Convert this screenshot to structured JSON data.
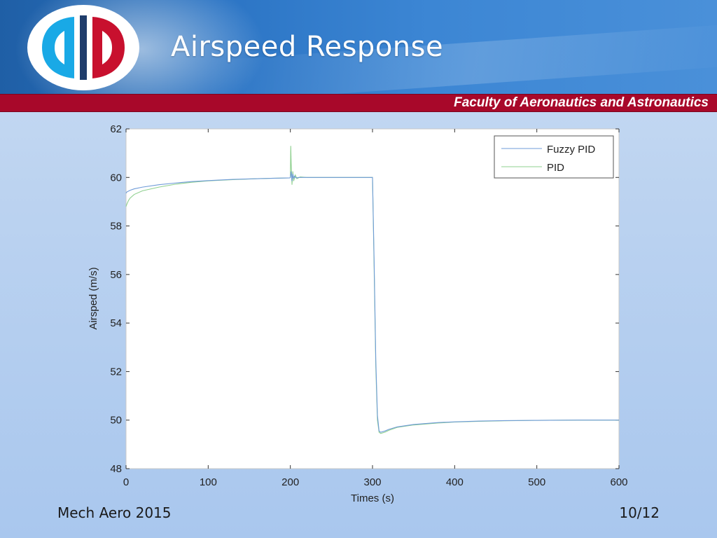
{
  "slide": {
    "title": "Airspeed Response",
    "band_text": "Faculty of Aeronautics and Astronautics",
    "footer_left": "Mech Aero 2015",
    "page_number": "10/12",
    "colors": {
      "header_blue": "#2b74c4",
      "band_red": "#a8082a",
      "logo_cyan": "#19a9e6",
      "logo_red": "#c8102e"
    },
    "logo_icon": "university-logo-icon"
  },
  "chart_data": {
    "type": "line",
    "xlabel": "Times (s)",
    "ylabel": "Airsped (m/s)",
    "xlim": [
      0,
      600
    ],
    "ylim": [
      48,
      62
    ],
    "xticks": [
      0,
      100,
      200,
      300,
      400,
      500,
      600
    ],
    "yticks": [
      48,
      50,
      52,
      54,
      56,
      58,
      60,
      62
    ],
    "grid": false,
    "legend_position": "top-right",
    "series": [
      {
        "name": "Fuzzy PID",
        "color": "#6f9bd8",
        "x": [
          0,
          1,
          5,
          10,
          20,
          40,
          60,
          80,
          100,
          130,
          160,
          199.5,
          200,
          201,
          202,
          203,
          204,
          205,
          207,
          210,
          220,
          250,
          299,
          300,
          302,
          304,
          306,
          308,
          310,
          315,
          320,
          330,
          350,
          380,
          400,
          430,
          460,
          500,
          550,
          600
        ],
        "y": [
          59.35,
          59.4,
          59.47,
          59.53,
          59.6,
          59.7,
          59.77,
          59.83,
          59.87,
          59.92,
          59.95,
          59.98,
          60.0,
          60.25,
          59.85,
          60.15,
          59.95,
          60.05,
          59.98,
          60.0,
          60.0,
          60.0,
          60.0,
          60.0,
          56.5,
          52.5,
          50.2,
          49.55,
          49.5,
          49.55,
          49.62,
          49.72,
          49.82,
          49.9,
          49.93,
          49.96,
          49.98,
          49.99,
          50.0,
          50.0
        ]
      },
      {
        "name": "PID",
        "color": "#8fd08f",
        "x": [
          0,
          1,
          3,
          5,
          10,
          20,
          40,
          60,
          80,
          100,
          130,
          160,
          199.5,
          200,
          200.5,
          201,
          202,
          203,
          204,
          206,
          208,
          212,
          220,
          250,
          299,
          300,
          302,
          304,
          306,
          308,
          310,
          315,
          320,
          330,
          350,
          380,
          400,
          430,
          460,
          500,
          550,
          600
        ],
        "y": [
          58.8,
          58.9,
          59.05,
          59.15,
          59.3,
          59.45,
          59.6,
          59.72,
          59.8,
          59.86,
          59.91,
          59.95,
          59.98,
          60.0,
          61.3,
          60.6,
          59.7,
          60.25,
          59.85,
          60.1,
          59.95,
          60.02,
          60.0,
          60.0,
          60.0,
          60.0,
          56.2,
          52.2,
          50.0,
          49.5,
          49.45,
          49.5,
          49.58,
          49.7,
          49.8,
          49.88,
          49.92,
          49.95,
          49.97,
          49.99,
          50.0,
          50.0
        ]
      }
    ]
  }
}
